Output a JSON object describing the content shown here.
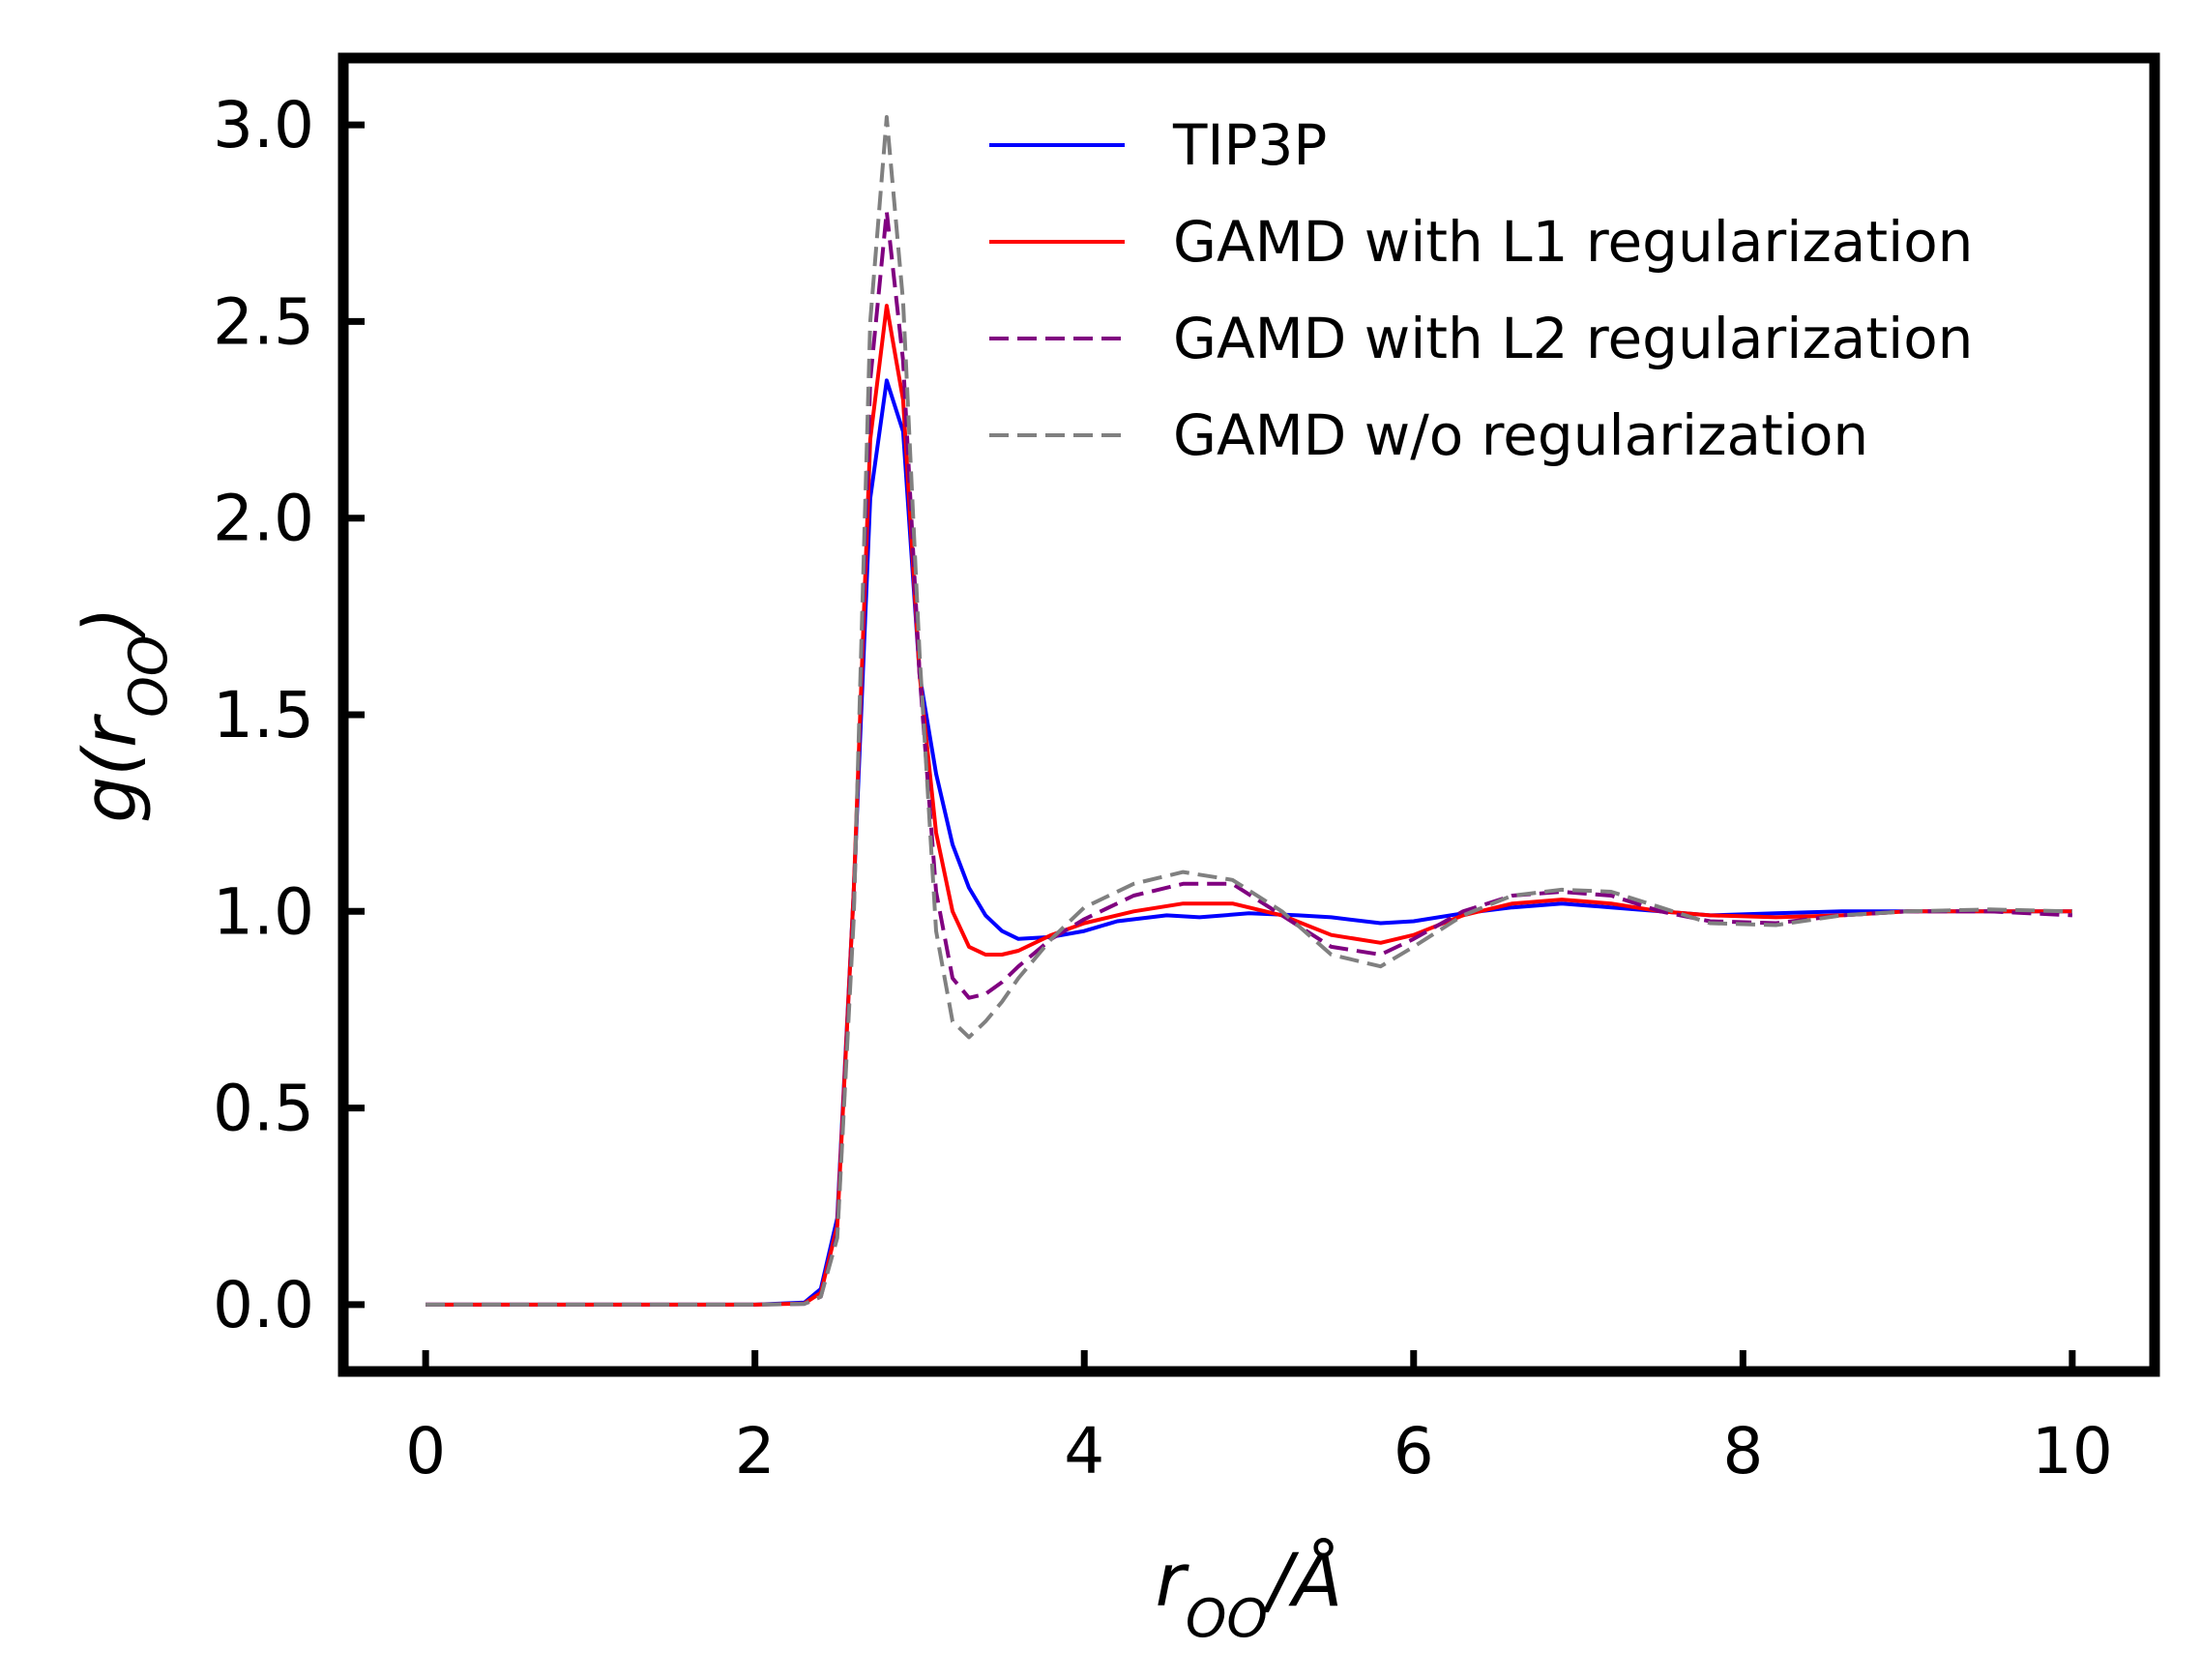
{
  "chart_data": {
    "type": "line",
    "xlabel": "r_OO/Å",
    "ylabel": "g(r_OO)",
    "xlim": [
      -0.5,
      10.5
    ],
    "ylim": [
      -0.17,
      3.17
    ],
    "xticks": [
      0,
      2,
      4,
      6,
      8,
      10
    ],
    "yticks": [
      0.0,
      0.5,
      1.0,
      1.5,
      2.0,
      2.5,
      3.0
    ],
    "grid": false,
    "legend_position": "top-right",
    "series": [
      {
        "name": "TIP3P",
        "color": "#0000ff",
        "dash": "solid",
        "x": [
          0,
          1,
          2,
          2.3,
          2.4,
          2.5,
          2.6,
          2.7,
          2.8,
          2.9,
          3.0,
          3.1,
          3.2,
          3.3,
          3.4,
          3.5,
          3.6,
          3.8,
          4.0,
          4.2,
          4.5,
          4.7,
          5.0,
          5.3,
          5.5,
          5.8,
          6.0,
          6.3,
          6.6,
          6.9,
          7.2,
          7.5,
          7.8,
          8.2,
          8.6,
          9.0,
          9.5,
          10.0
        ],
        "y": [
          0,
          0,
          0,
          0.005,
          0.04,
          0.22,
          1.05,
          2.05,
          2.35,
          2.22,
          1.6,
          1.35,
          1.17,
          1.06,
          0.99,
          0.95,
          0.93,
          0.935,
          0.95,
          0.975,
          0.99,
          0.985,
          0.995,
          0.99,
          0.985,
          0.97,
          0.975,
          0.995,
          1.01,
          1.02,
          1.01,
          1.0,
          0.99,
          0.995,
          1.0,
          1.0,
          1.0,
          1.0
        ]
      },
      {
        "name": "GAMD with L1 regularization",
        "color": "#ff0000",
        "dash": "solid",
        "x": [
          0,
          1,
          2,
          2.3,
          2.4,
          2.5,
          2.6,
          2.7,
          2.8,
          2.9,
          3.0,
          3.1,
          3.2,
          3.3,
          3.4,
          3.5,
          3.6,
          3.8,
          4.0,
          4.3,
          4.6,
          4.9,
          5.2,
          5.5,
          5.8,
          6.0,
          6.3,
          6.6,
          6.9,
          7.2,
          7.5,
          7.8,
          8.2,
          8.6,
          9.0,
          9.5,
          10.0
        ],
        "y": [
          0,
          0,
          0,
          0.003,
          0.03,
          0.2,
          1.05,
          2.2,
          2.54,
          2.3,
          1.6,
          1.2,
          1.0,
          0.91,
          0.89,
          0.89,
          0.9,
          0.94,
          0.97,
          1.0,
          1.02,
          1.02,
          0.99,
          0.94,
          0.92,
          0.94,
          0.99,
          1.02,
          1.03,
          1.02,
          1.0,
          0.99,
          0.985,
          0.99,
          1.0,
          1.0,
          1.0
        ]
      },
      {
        "name": "GAMD with L2 regularization",
        "color": "#800080",
        "dash": "dashed",
        "x": [
          0,
          1,
          2,
          2.3,
          2.4,
          2.5,
          2.6,
          2.7,
          2.8,
          2.9,
          3.0,
          3.1,
          3.2,
          3.3,
          3.4,
          3.5,
          3.6,
          3.8,
          4.0,
          4.3,
          4.6,
          4.9,
          5.2,
          5.5,
          5.8,
          6.0,
          6.3,
          6.6,
          6.9,
          7.2,
          7.5,
          7.8,
          8.2,
          8.6,
          9.0,
          9.5,
          10.0
        ],
        "y": [
          0,
          0,
          0,
          0.002,
          0.02,
          0.18,
          1.0,
          2.35,
          2.78,
          2.4,
          1.6,
          1.05,
          0.83,
          0.78,
          0.79,
          0.82,
          0.86,
          0.93,
          0.98,
          1.04,
          1.07,
          1.07,
          0.99,
          0.91,
          0.89,
          0.93,
          1.0,
          1.04,
          1.05,
          1.04,
          1.0,
          0.975,
          0.97,
          0.99,
          1.0,
          1.0,
          0.99
        ]
      },
      {
        "name": "GAMD w/o regularization",
        "color": "#808080",
        "dash": "dashed",
        "x": [
          0,
          1,
          2,
          2.3,
          2.4,
          2.5,
          2.6,
          2.7,
          2.8,
          2.9,
          3.0,
          3.1,
          3.2,
          3.3,
          3.4,
          3.5,
          3.6,
          3.8,
          4.0,
          4.3,
          4.6,
          4.9,
          5.2,
          5.5,
          5.8,
          6.0,
          6.3,
          6.6,
          6.9,
          7.2,
          7.5,
          7.8,
          8.2,
          8.6,
          9.0,
          9.5,
          10.0
        ],
        "y": [
          0,
          0,
          0,
          0.002,
          0.02,
          0.17,
          0.98,
          2.5,
          3.02,
          2.55,
          1.65,
          0.95,
          0.72,
          0.68,
          0.72,
          0.77,
          0.83,
          0.93,
          1.01,
          1.07,
          1.1,
          1.08,
          1.0,
          0.89,
          0.86,
          0.91,
          0.99,
          1.04,
          1.055,
          1.05,
          1.01,
          0.97,
          0.965,
          0.99,
          1.0,
          1.005,
          1.0
        ]
      }
    ]
  }
}
